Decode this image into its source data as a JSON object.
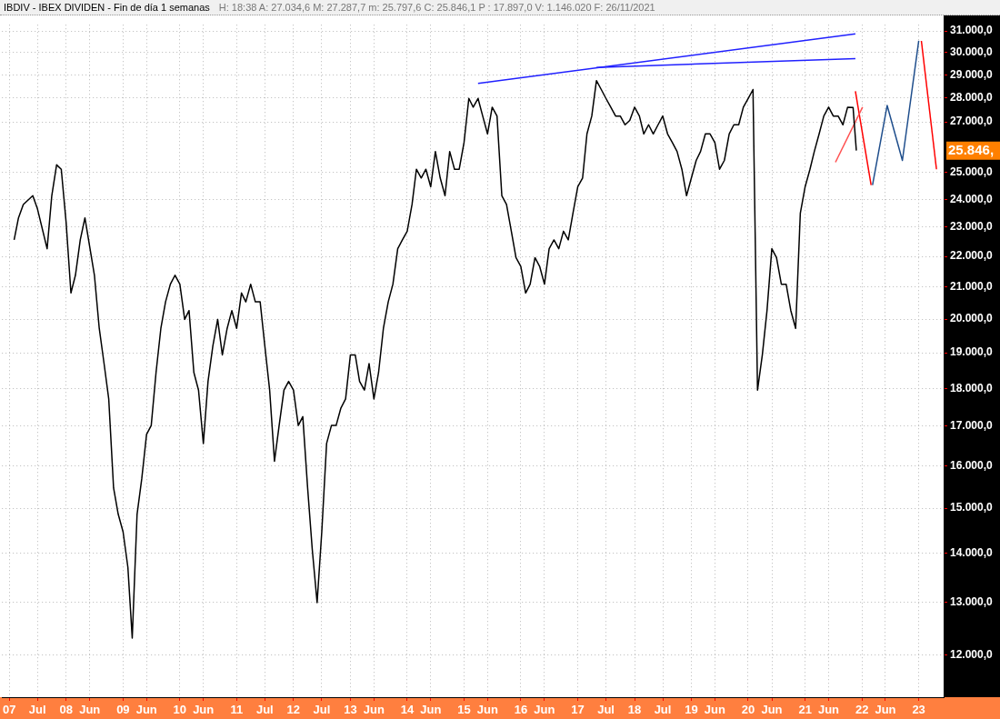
{
  "chart_data": {
    "type": "line",
    "title": "IBDIV - IBEX DIVIDEN - Fin de día 1 semanas",
    "subtitle": "H: 18:38   A: 27.034,6   M: 27.287,7   m: 25.797,6   C: 25.846,1   P : 17.897,0   V: 1.146.020   F: 26/11/2021",
    "x": [
      "2007-02",
      "2007-03",
      "2007-04",
      "2007-06",
      "2007-07",
      "2007-09",
      "2007-10",
      "2007-11",
      "2007-12",
      "2008-01",
      "2008-02",
      "2008-03",
      "2008-04",
      "2008-05",
      "2008-07",
      "2008-08",
      "2008-09",
      "2008-10",
      "2008-11",
      "2008-12",
      "2009-01",
      "2009-02",
      "2009-03",
      "2009-04",
      "2009-05",
      "2009-06",
      "2009-07",
      "2009-08",
      "2009-09",
      "2009-10",
      "2009-11",
      "2009-12",
      "2010-01",
      "2010-02",
      "2010-03",
      "2010-04",
      "2010-05",
      "2010-06",
      "2010-07",
      "2010-08",
      "2010-09",
      "2010-10",
      "2010-11",
      "2010-12",
      "2011-01",
      "2011-02",
      "2011-03",
      "2011-04",
      "2011-05",
      "2011-06",
      "2011-07",
      "2011-08",
      "2011-09",
      "2011-10",
      "2011-11",
      "2011-12",
      "2012-01",
      "2012-02",
      "2012-03",
      "2012-04",
      "2012-05",
      "2012-06",
      "2012-07",
      "2012-08",
      "2012-09",
      "2012-10",
      "2012-11",
      "2012-12",
      "2013-01",
      "2013-02",
      "2013-03",
      "2013-04",
      "2013-05",
      "2013-06",
      "2013-07",
      "2013-08",
      "2013-09",
      "2013-10",
      "2013-11",
      "2013-12",
      "2014-01",
      "2014-02",
      "2014-03",
      "2014-04",
      "2014-05",
      "2014-06",
      "2014-07",
      "2014-08",
      "2014-09",
      "2014-10",
      "2014-11",
      "2014-12",
      "2015-01",
      "2015-02",
      "2015-03",
      "2015-04",
      "2015-05",
      "2015-06",
      "2015-07",
      "2015-08",
      "2015-09",
      "2015-10",
      "2015-11",
      "2015-12",
      "2016-01",
      "2016-02",
      "2016-03",
      "2016-04",
      "2016-05",
      "2016-06",
      "2016-07",
      "2016-08",
      "2016-09",
      "2016-10",
      "2016-11",
      "2016-12",
      "2017-01",
      "2017-02",
      "2017-03",
      "2017-04",
      "2017-05",
      "2017-06",
      "2017-07",
      "2017-08",
      "2017-09",
      "2017-10",
      "2017-11",
      "2017-12",
      "2018-01",
      "2018-02",
      "2018-03",
      "2018-04",
      "2018-05",
      "2018-06",
      "2018-07",
      "2018-08",
      "2018-09",
      "2018-10",
      "2018-11",
      "2018-12",
      "2019-01",
      "2019-02",
      "2019-03",
      "2019-04",
      "2019-05",
      "2019-06",
      "2019-07",
      "2019-08",
      "2019-09",
      "2019-10",
      "2019-11",
      "2019-12",
      "2020-01",
      "2020-02",
      "2020-03",
      "2020-04",
      "2020-05",
      "2020-06",
      "2020-07",
      "2020-08",
      "2020-09",
      "2020-10",
      "2020-11",
      "2020-12",
      "2021-01",
      "2021-02",
      "2021-03",
      "2021-04",
      "2021-05",
      "2021-06",
      "2021-07",
      "2021-08",
      "2021-09",
      "2021-10",
      "2021-11-05",
      "2021-11-26"
    ],
    "series": [
      {
        "color": "#000000",
        "values": [
          22560,
          23330,
          23810,
          24130,
          23650,
          22260,
          24130,
          25290,
          25120,
          23180,
          20810,
          21380,
          22560,
          23330,
          21380,
          19720,
          18690,
          17710,
          15470,
          14860,
          14470,
          13710,
          12310,
          14860,
          15680,
          16780,
          17010,
          18440,
          19720,
          20530,
          21090,
          21380,
          21090,
          19990,
          20260,
          18440,
          17950,
          16550,
          18190,
          19200,
          19990,
          18940,
          19720,
          20260,
          19720,
          20810,
          20530,
          21090,
          20530,
          20530,
          19200,
          17950,
          16110,
          17010,
          17950,
          18190,
          17950,
          17010,
          17240,
          15470,
          14080,
          12990,
          14470,
          16550,
          17010,
          17010,
          17470,
          17710,
          18940,
          18940,
          18190,
          17950,
          18690,
          17710,
          18440,
          19720,
          20530,
          21090,
          22260,
          22560,
          22860,
          23810,
          25120,
          24790,
          25120,
          24460,
          25810,
          24790,
          24130,
          25810,
          25120,
          25120,
          26160,
          27980,
          27610,
          27980,
          27240,
          26510,
          27610,
          27240,
          24130,
          23810,
          22860,
          21960,
          21670,
          20810,
          21090,
          21960,
          21670,
          21090,
          22260,
          22560,
          22260,
          22860,
          22560,
          23490,
          24460,
          24790,
          26510,
          27240,
          28750,
          28360,
          27980,
          27610,
          27240,
          27240,
          26880,
          27060,
          27610,
          27240,
          26510,
          26880,
          26510,
          26880,
          27240,
          26510,
          26160,
          25810,
          25120,
          24130,
          24790,
          25460,
          25810,
          26510,
          26510,
          26160,
          25120,
          25460,
          26510,
          26880,
          26880,
          27610,
          27980,
          28360,
          17950,
          18940,
          20260,
          22260,
          21960,
          21090,
          21090,
          20260,
          19720,
          23490,
          24460,
          25120,
          25810,
          26510,
          27240,
          27610,
          27240,
          27240,
          26880,
          27610,
          27600,
          25846
        ]
      },
      {
        "type": "line",
        "color": "#2020ff",
        "x": [
          "2015-04",
          "2021-11-20"
        ],
        "values": [
          28630,
          30870
        ]
      },
      {
        "type": "line",
        "color": "#2020ff",
        "x": [
          "2017-05",
          "2021-11-20"
        ],
        "values": [
          29330,
          29730
        ]
      },
      {
        "type": "line",
        "color": "#ff5050",
        "x": [
          "2021-07-15",
          "2022-01-05"
        ],
        "values": [
          25390,
          27610
        ]
      },
      {
        "type": "line",
        "color": "#ff0000",
        "x": [
          "2021-11-20",
          "2022-03-01"
        ],
        "values": [
          28290,
          24520
        ]
      },
      {
        "type": "line",
        "color": "#1f4e8c",
        "x": [
          "2022-03-10",
          "2022-06-12",
          "2022-09-18",
          "2023-01-01"
        ],
        "values": [
          24520,
          27680,
          25460,
          30540
        ]
      },
      {
        "type": "line",
        "color": "#ff0000",
        "x": [
          "2023-01-18",
          "2023-04-25"
        ],
        "values": [
          30540,
          25120
        ]
      }
    ],
    "log": true,
    "xlim": [
      "2006-11-15",
      "2023-06-10"
    ],
    "xticks": [
      {
        "value": "2007-01-01",
        "label": "07"
      },
      {
        "value": "2007-07-01",
        "label": "Jul"
      },
      {
        "value": "2008-01-01",
        "label": "08"
      },
      {
        "value": "2008-06-01",
        "label": "Jun"
      },
      {
        "value": "2009-01-01",
        "label": "09"
      },
      {
        "value": "2009-06-01",
        "label": "Jun"
      },
      {
        "value": "2010-01-01",
        "label": "10"
      },
      {
        "value": "2010-06-01",
        "label": "Jun"
      },
      {
        "value": "2011-01-01",
        "label": "11"
      },
      {
        "value": "2011-07-01",
        "label": "Jul"
      },
      {
        "value": "2012-01-01",
        "label": "12"
      },
      {
        "value": "2012-07-01",
        "label": "Jul"
      },
      {
        "value": "2013-01-01",
        "label": "13"
      },
      {
        "value": "2013-06-01",
        "label": "Jun"
      },
      {
        "value": "2014-01-01",
        "label": "14"
      },
      {
        "value": "2014-06-01",
        "label": "Jun"
      },
      {
        "value": "2015-01-01",
        "label": "15"
      },
      {
        "value": "2015-06-01",
        "label": "Jun"
      },
      {
        "value": "2016-01-01",
        "label": "16"
      },
      {
        "value": "2016-06-01",
        "label": "Jun"
      },
      {
        "value": "2017-01-01",
        "label": "17"
      },
      {
        "value": "2017-07-01",
        "label": "Jul"
      },
      {
        "value": "2018-01-01",
        "label": "18"
      },
      {
        "value": "2018-07-01",
        "label": "Jul"
      },
      {
        "value": "2019-01-01",
        "label": "19"
      },
      {
        "value": "2019-06-01",
        "label": "Jun"
      },
      {
        "value": "2020-01-01",
        "label": "20"
      },
      {
        "value": "2020-06-01",
        "label": "Jun"
      },
      {
        "value": "2021-01-01",
        "label": "21"
      },
      {
        "value": "2021-06-01",
        "label": "Jun"
      },
      {
        "value": "2022-01-01",
        "label": "22"
      },
      {
        "value": "2022-06-01",
        "label": "Jun"
      },
      {
        "value": "2023-01-01",
        "label": "23"
      }
    ],
    "ylim": [
      11250,
      31300
    ],
    "yticks": [
      {
        "value": 12000,
        "label": "12.000,0"
      },
      {
        "value": 13000,
        "label": "13.000,0"
      },
      {
        "value": 14000,
        "label": "14.000,0"
      },
      {
        "value": 15000,
        "label": "15.000,0"
      },
      {
        "value": 16000,
        "label": "16.000,0"
      },
      {
        "value": 17000,
        "label": "17.000,0"
      },
      {
        "value": 18000,
        "label": "18.000,0"
      },
      {
        "value": 19000,
        "label": "19.000,0"
      },
      {
        "value": 20000,
        "label": "20.000,0"
      },
      {
        "value": 21000,
        "label": "21.000,0"
      },
      {
        "value": 22000,
        "label": "22.000,0"
      },
      {
        "value": 23000,
        "label": "23.000,0"
      },
      {
        "value": 24000,
        "label": "24.000,0"
      },
      {
        "value": 25000,
        "label": "25.000,0"
      },
      {
        "value": 27000,
        "label": "27.000,0"
      },
      {
        "value": 28000,
        "label": "28.000,0"
      },
      {
        "value": 29000,
        "label": "29.000,0"
      },
      {
        "value": 30000,
        "label": "30.000,0"
      },
      {
        "value": 31000,
        "label": "31.000,0"
      }
    ],
    "grid": true,
    "marker": "none",
    "line_style": "solid",
    "annotations": [
      "25.846,"
    ]
  }
}
